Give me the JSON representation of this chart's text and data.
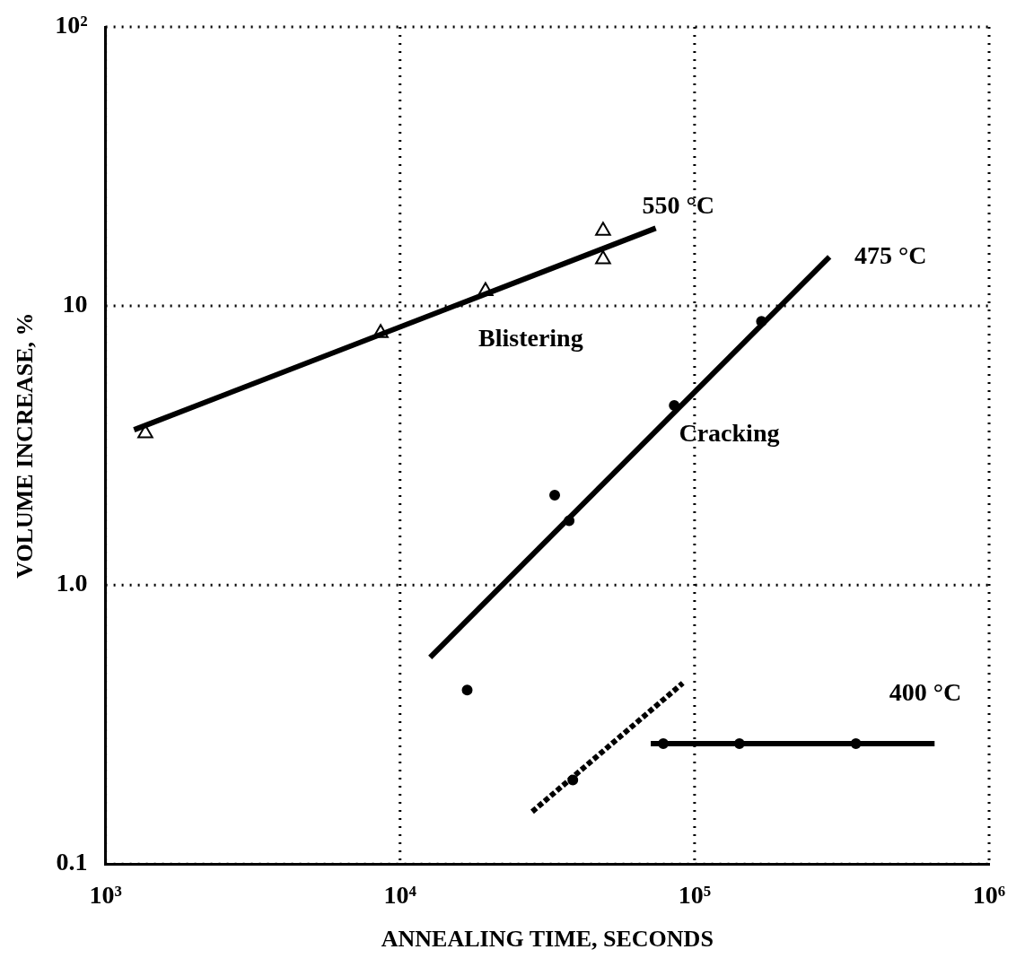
{
  "chart_data": {
    "type": "scatter",
    "xlabel": "ANNEALING TIME, SECONDS",
    "ylabel": "VOLUME INCREASE, %",
    "log": "xy",
    "grid": true,
    "xlim": [
      1000,
      1000000
    ],
    "xticks": [
      {
        "value": 1000,
        "label": "10³"
      },
      {
        "value": 10000,
        "label": "10⁴"
      },
      {
        "value": 100000,
        "label": "10⁵"
      },
      {
        "value": 1000000,
        "label": "10⁶"
      }
    ],
    "ylim": [
      0.1,
      100
    ],
    "yticks": [
      0.1,
      {
        "value": 1,
        "label": "1.0"
      },
      10,
      {
        "value": 100,
        "label": "10²"
      }
    ],
    "series": [
      {
        "marker": "triangle",
        "color": "#000000",
        "x": [
          1365,
          8590,
          19500,
          48900,
          48900
        ],
        "values": [
          3.5,
          8,
          11.3,
          18.6,
          14.7
        ]
      },
      {
        "type": "line",
        "name": "550 °C",
        "marker": "none",
        "line_style": "solid",
        "color": "#000000",
        "x": [
          1250,
          73800
        ],
        "values": [
          3.6,
          19
        ]
      },
      {
        "marker": "circle",
        "color": "#000000",
        "x": [
          16900,
          33500,
          37500,
          85300,
          168700
        ],
        "values": [
          0.42,
          2.1,
          1.7,
          4.4,
          8.8
        ]
      },
      {
        "type": "line",
        "name": "475 °C",
        "marker": "none",
        "line_style": "solid",
        "color": "#000000",
        "x": [
          12650,
          287000
        ],
        "values": [
          0.55,
          15
        ]
      },
      {
        "marker": "circle",
        "color": "#000000",
        "x": [
          38600,
          78300,
          142000,
          353000
        ],
        "values": [
          0.2,
          0.27,
          0.27,
          0.27
        ]
      },
      {
        "type": "line",
        "name": "400 °C",
        "marker": "none",
        "line_style": "solid",
        "color": "#000000",
        "x": [
          71000,
          653000
        ],
        "values": [
          0.27,
          0.27
        ]
      },
      {
        "type": "line",
        "marker": "none",
        "line_style": "dashed",
        "color": "#000000",
        "x": [
          28100,
          91200
        ],
        "values": [
          0.154,
          0.445
        ]
      }
    ],
    "annotations": [
      "Blistering",
      "Cracking"
    ]
  }
}
